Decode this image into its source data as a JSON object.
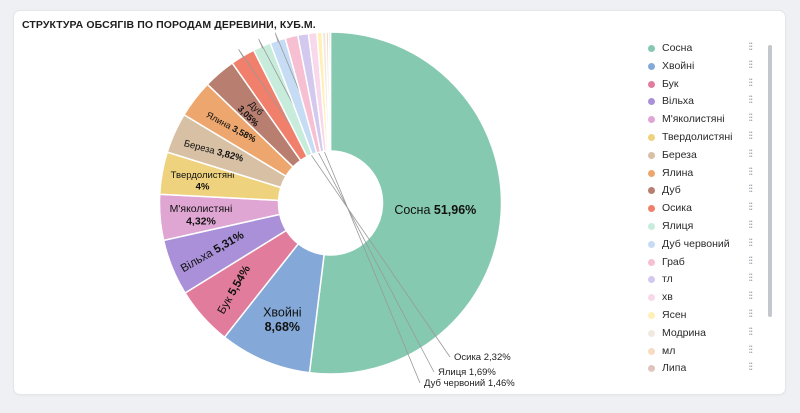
{
  "chart_data": {
    "type": "pie",
    "donut": true,
    "title": "СТРУКТУРА ОБСЯГІВ ПО ПОРОДАМ ДЕРЕВИНИ, КУБ.М.",
    "legend_position": "right",
    "slices": [
      {
        "name": "Сосна",
        "value": 51.96,
        "label": "51,96%",
        "color": "#85c9b0"
      },
      {
        "name": "Хвойні",
        "value": 8.68,
        "label": "8,68%",
        "color": "#84a9d8"
      },
      {
        "name": "Бук",
        "value": 5.54,
        "label": "5,54%",
        "color": "#e27c9c"
      },
      {
        "name": "Вільха",
        "value": 5.31,
        "label": "5,31%",
        "color": "#a990d8"
      },
      {
        "name": "М'яколистяні",
        "value": 4.32,
        "label": "4,32%",
        "color": "#dfa6d3"
      },
      {
        "name": "Твердолистяні",
        "value": 4.0,
        "label": "4%",
        "color": "#eed27e"
      },
      {
        "name": "Береза",
        "value": 3.82,
        "label": "3,82%",
        "color": "#d8c0a4"
      },
      {
        "name": "Ялина",
        "value": 3.58,
        "label": "3,58%",
        "color": "#eda76e"
      },
      {
        "name": "Дуб",
        "value": 3.05,
        "label": "3,05%",
        "color": "#b87e70"
      },
      {
        "name": "Осика",
        "value": 2.32,
        "label": "2,32%",
        "color": "#f07f6c"
      },
      {
        "name": "Ялиця",
        "value": 1.69,
        "label": "1,69%",
        "color": "#c8ecdc"
      },
      {
        "name": "Дуб червоний",
        "value": 1.46,
        "label": "1,46%",
        "color": "#c6dcf4"
      },
      {
        "name": "Граб",
        "value": 1.2,
        "label": "",
        "color": "#f6bfd2"
      },
      {
        "name": "тл",
        "value": 1.0,
        "label": "",
        "color": "#d3c8ee"
      },
      {
        "name": "хв",
        "value": 0.8,
        "label": "",
        "color": "#f8d8ea"
      },
      {
        "name": "Ясен",
        "value": 0.5,
        "label": "",
        "color": "#fff0b8"
      },
      {
        "name": "Модрина",
        "value": 0.35,
        "label": "",
        "color": "#f1e9e0"
      },
      {
        "name": "мл",
        "value": 0.25,
        "label": "",
        "color": "#f7dcc4"
      },
      {
        "name": "Липа",
        "value": 0.17,
        "label": "",
        "color": "#e0c4bc"
      }
    ]
  }
}
